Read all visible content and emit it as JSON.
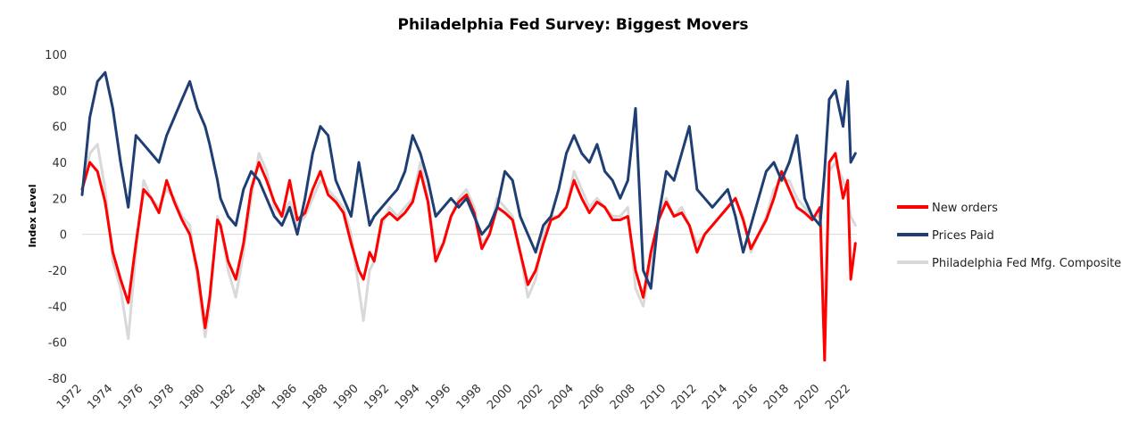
{
  "chart_data": {
    "type": "line",
    "title": "Philadelphia Fed Survey: Biggest Movers",
    "xlabel": "",
    "ylabel": "Index Level",
    "ylim": [
      -80,
      100
    ],
    "yticks": [
      100,
      80,
      60,
      40,
      20,
      0,
      -20,
      -40,
      -60,
      -80
    ],
    "xlim": [
      1972,
      2022.4
    ],
    "xticks": [
      "1972",
      "1974",
      "1976",
      "1978",
      "1980",
      "1982",
      "1984",
      "1986",
      "1988",
      "1990",
      "1992",
      "1994",
      "1996",
      "1998",
      "2000",
      "2002",
      "2004",
      "2006",
      "2008",
      "2010",
      "2012",
      "2014",
      "2016",
      "2018",
      "2020",
      "2022"
    ],
    "legend_position": "right",
    "grid": false,
    "series": [
      {
        "name": "Philadelphia Fed Mfg. Composite",
        "color": "#d9d9d9",
        "x": [
          1972,
          1972.5,
          1973,
          1973.5,
          1974,
          1974.5,
          1975,
          1975.5,
          1976,
          1976.5,
          1977,
          1977.5,
          1978,
          1978.5,
          1979,
          1979.5,
          1980,
          1980.3,
          1980.8,
          1981,
          1981.5,
          1982,
          1982.5,
          1983,
          1983.5,
          1984,
          1984.5,
          1985,
          1985.5,
          1986,
          1986.5,
          1987,
          1987.5,
          1988,
          1988.5,
          1989,
          1989.5,
          1990,
          1990.3,
          1990.7,
          1991,
          1991.5,
          1992,
          1992.5,
          1993,
          1993.5,
          1994,
          1994.5,
          1995,
          1995.5,
          1996,
          1996.5,
          1997,
          1997.5,
          1998,
          1998.5,
          1999,
          1999.5,
          2000,
          2000.5,
          2001,
          2001.5,
          2002,
          2002.5,
          2003,
          2003.5,
          2004,
          2004.5,
          2005,
          2005.5,
          2006,
          2006.5,
          2007,
          2007.5,
          2008,
          2008.5,
          2009,
          2009.5,
          2010,
          2010.5,
          2011,
          2011.5,
          2012,
          2012.5,
          2013,
          2013.5,
          2014,
          2014.5,
          2015,
          2015.5,
          2016,
          2016.5,
          2017,
          2017.5,
          2018,
          2018.5,
          2019,
          2019.5,
          2020,
          2020.3,
          2020.6,
          2021,
          2021.5,
          2021.8,
          2022,
          2022.3
        ],
        "values": [
          25,
          45,
          50,
          25,
          -15,
          -30,
          -58,
          -10,
          30,
          20,
          15,
          25,
          20,
          10,
          5,
          -25,
          -57,
          -40,
          10,
          5,
          -20,
          -35,
          -10,
          20,
          45,
          35,
          15,
          10,
          18,
          5,
          10,
          20,
          30,
          25,
          20,
          15,
          0,
          -30,
          -48,
          -20,
          -15,
          5,
          15,
          10,
          15,
          20,
          40,
          20,
          -10,
          -5,
          10,
          20,
          25,
          15,
          -5,
          0,
          20,
          15,
          10,
          -10,
          -35,
          -25,
          0,
          10,
          10,
          15,
          35,
          25,
          15,
          20,
          15,
          10,
          10,
          15,
          -30,
          -40,
          -15,
          10,
          20,
          10,
          15,
          5,
          -5,
          0,
          5,
          10,
          15,
          20,
          10,
          -10,
          0,
          10,
          25,
          30,
          30,
          20,
          15,
          10,
          10,
          -45,
          35,
          40,
          30,
          20,
          10,
          5
        ]
      },
      {
        "name": "New orders",
        "color": "#ff0000",
        "x": [
          1972,
          1972.5,
          1973,
          1973.5,
          1974,
          1974.5,
          1975,
          1975.5,
          1976,
          1976.5,
          1977,
          1977.5,
          1978,
          1978.5,
          1979,
          1979.5,
          1980,
          1980.3,
          1980.8,
          1981,
          1981.5,
          1982,
          1982.5,
          1983,
          1983.5,
          1984,
          1984.5,
          1985,
          1985.5,
          1986,
          1986.5,
          1987,
          1987.5,
          1988,
          1988.5,
          1989,
          1989.5,
          1990,
          1990.3,
          1990.7,
          1991,
          1991.5,
          1992,
          1992.5,
          1993,
          1993.5,
          1994,
          1994.5,
          1995,
          1995.5,
          1996,
          1996.5,
          1997,
          1997.5,
          1998,
          1998.5,
          1999,
          1999.5,
          2000,
          2000.5,
          2001,
          2001.5,
          2002,
          2002.5,
          2003,
          2003.5,
          2004,
          2004.5,
          2005,
          2005.5,
          2006,
          2006.5,
          2007,
          2007.5,
          2008,
          2008.5,
          2009,
          2009.5,
          2010,
          2010.5,
          2011,
          2011.5,
          2012,
          2012.5,
          2013,
          2013.5,
          2014,
          2014.5,
          2015,
          2015.5,
          2016,
          2016.5,
          2017,
          2017.5,
          2018,
          2018.5,
          2019,
          2019.5,
          2020,
          2020.3,
          2020.6,
          2021,
          2021.5,
          2021.8,
          2022,
          2022.3
        ],
        "values": [
          25,
          40,
          35,
          18,
          -10,
          -25,
          -38,
          -5,
          25,
          20,
          12,
          30,
          18,
          8,
          0,
          -20,
          -52,
          -35,
          8,
          5,
          -15,
          -25,
          -5,
          25,
          40,
          30,
          18,
          10,
          30,
          8,
          12,
          25,
          35,
          22,
          18,
          12,
          -5,
          -20,
          -25,
          -10,
          -15,
          8,
          12,
          8,
          12,
          18,
          35,
          18,
          -15,
          -5,
          10,
          18,
          22,
          12,
          -8,
          0,
          15,
          12,
          8,
          -10,
          -28,
          -20,
          -5,
          8,
          10,
          15,
          30,
          20,
          12,
          18,
          15,
          8,
          8,
          10,
          -20,
          -35,
          -10,
          8,
          18,
          10,
          12,
          5,
          -10,
          0,
          5,
          10,
          15,
          20,
          8,
          -8,
          0,
          8,
          20,
          35,
          25,
          15,
          12,
          8,
          15,
          -70,
          40,
          45,
          20,
          30,
          -25,
          -5
        ]
      },
      {
        "name": "Prices Paid",
        "color": "#1f3e73",
        "x": [
          1972,
          1972.5,
          1973,
          1973.5,
          1974,
          1974.5,
          1975,
          1975.5,
          1976,
          1976.5,
          1977,
          1977.5,
          1978,
          1978.5,
          1979,
          1979.5,
          1980,
          1980.3,
          1980.8,
          1981,
          1981.5,
          1982,
          1982.5,
          1983,
          1983.5,
          1984,
          1984.5,
          1985,
          1985.5,
          1986,
          1986.5,
          1987,
          1987.5,
          1988,
          1988.5,
          1989,
          1989.5,
          1990,
          1990.3,
          1990.7,
          1991,
          1991.5,
          1992,
          1992.5,
          1993,
          1993.5,
          1994,
          1994.5,
          1995,
          1995.5,
          1996,
          1996.5,
          1997,
          1997.5,
          1998,
          1998.5,
          1999,
          1999.5,
          2000,
          2000.5,
          2001,
          2001.5,
          2002,
          2002.5,
          2003,
          2003.5,
          2004,
          2004.5,
          2005,
          2005.5,
          2006,
          2006.5,
          2007,
          2007.5,
          2008,
          2008.5,
          2009,
          2009.5,
          2010,
          2010.5,
          2011,
          2011.5,
          2012,
          2012.5,
          2013,
          2013.5,
          2014,
          2014.5,
          2015,
          2015.5,
          2016,
          2016.5,
          2017,
          2017.5,
          2018,
          2018.5,
          2019,
          2019.5,
          2020,
          2020.3,
          2020.6,
          2021,
          2021.5,
          2021.8,
          2022,
          2022.3
        ],
        "values": [
          22,
          65,
          85,
          90,
          70,
          40,
          15,
          55,
          50,
          45,
          40,
          55,
          65,
          75,
          85,
          70,
          60,
          50,
          30,
          20,
          10,
          5,
          25,
          35,
          30,
          20,
          10,
          5,
          15,
          0,
          20,
          45,
          60,
          55,
          30,
          20,
          10,
          40,
          25,
          5,
          10,
          15,
          20,
          25,
          35,
          55,
          45,
          30,
          10,
          15,
          20,
          15,
          20,
          10,
          0,
          5,
          15,
          35,
          30,
          10,
          0,
          -10,
          5,
          10,
          25,
          45,
          55,
          45,
          40,
          50,
          35,
          30,
          20,
          30,
          70,
          -20,
          -30,
          10,
          35,
          30,
          45,
          60,
          25,
          20,
          15,
          20,
          25,
          10,
          -10,
          5,
          20,
          35,
          40,
          30,
          40,
          55,
          20,
          10,
          5,
          35,
          75,
          80,
          60,
          85,
          40,
          45
        ]
      }
    ]
  }
}
